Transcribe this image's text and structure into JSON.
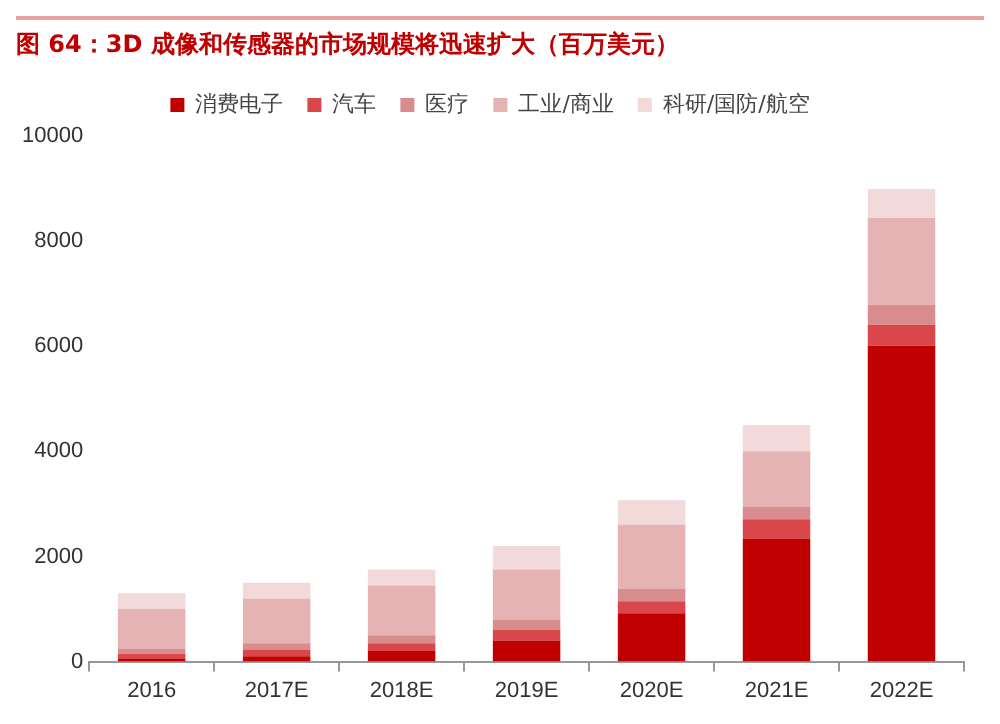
{
  "chart_data": {
    "type": "bar",
    "title": "图 64：3D 成像和传感器的市场规模将迅速扩大（百万美元）",
    "stacked": true,
    "legend": "top",
    "grid": false,
    "categories": [
      "2016",
      "2017E",
      "2018E",
      "2019E",
      "2020E",
      "2021E",
      "2022E"
    ],
    "ylim": [
      0,
      10000
    ],
    "yticks": [
      0,
      2000,
      4000,
      6000,
      8000,
      10000
    ],
    "series": [
      {
        "name": "消费电子",
        "color": "#c00000",
        "values": [
          50,
          100,
          200,
          400,
          920,
          2340,
          6010
        ]
      },
      {
        "name": "汽车",
        "color": "#d9474a",
        "values": [
          100,
          130,
          150,
          200,
          230,
          370,
          400
        ]
      },
      {
        "name": "医疗",
        "color": "#d98c8e",
        "values": [
          100,
          120,
          150,
          200,
          230,
          230,
          380
        ]
      },
      {
        "name": "工业/商业",
        "color": "#e6b3b5",
        "values": [
          750,
          850,
          950,
          950,
          1230,
          1060,
          1650
        ]
      },
      {
        "name": "科研/国防/航空",
        "color": "#f2d9da",
        "values": [
          300,
          300,
          300,
          450,
          460,
          500,
          550
        ]
      }
    ]
  }
}
